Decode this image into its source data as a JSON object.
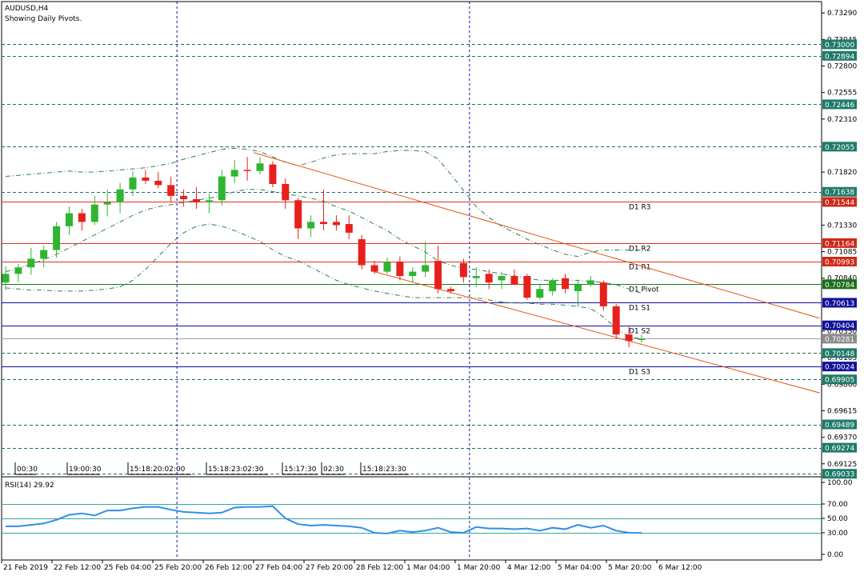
{
  "window": {
    "symbol_title": "AUDUSD,H4",
    "indicator_note": "Showing Daily Pivots."
  },
  "chart_data": {
    "type": "candlestick",
    "ylim": [
      0.69005,
      0.73395
    ],
    "y_ticks": [
      0.7329,
      0.73045,
      0.728,
      0.72555,
      0.7231,
      0.7182,
      0.7133,
      0.71085,
      0.7084,
      0.7035,
      0.70105,
      0.6986,
      0.69615,
      0.6937,
      0.69125
    ],
    "x_labels": [
      "21 Feb 2019",
      "22 Feb 12:00",
      "25 Feb 04:00",
      "25 Feb 20:00",
      "26 Feb 12:00",
      "27 Feb 04:00",
      "27 Feb 20:00",
      "28 Feb 12:00",
      "1 Mar 04:00",
      "1 Mar 20:00",
      "4 Mar 12:00",
      "5 Mar 04:00",
      "5 Mar 20:00",
      "6 Mar 12:00"
    ],
    "session_labels": [
      "00:30",
      "19:00:30",
      "15:18:20:02:00",
      "15:18:23:02:30",
      "15:17:30",
      "02:30",
      "15:18:23:30"
    ],
    "candles": [
      {
        "o": 0.708,
        "h": 0.7095,
        "l": 0.7073,
        "c": 0.7088
      },
      {
        "o": 0.7088,
        "h": 0.7097,
        "l": 0.708,
        "c": 0.7094
      },
      {
        "o": 0.7094,
        "h": 0.7112,
        "l": 0.7087,
        "c": 0.7102
      },
      {
        "o": 0.7102,
        "h": 0.7114,
        "l": 0.7094,
        "c": 0.711
      },
      {
        "o": 0.711,
        "h": 0.7136,
        "l": 0.7103,
        "c": 0.7132
      },
      {
        "o": 0.7132,
        "h": 0.715,
        "l": 0.7124,
        "c": 0.7144
      },
      {
        "o": 0.7144,
        "h": 0.7148,
        "l": 0.7128,
        "c": 0.7136
      },
      {
        "o": 0.7136,
        "h": 0.716,
        "l": 0.7133,
        "c": 0.7152
      },
      {
        "o": 0.7152,
        "h": 0.7166,
        "l": 0.7141,
        "c": 0.7154
      },
      {
        "o": 0.7154,
        "h": 0.7172,
        "l": 0.7144,
        "c": 0.7166
      },
      {
        "o": 0.7166,
        "h": 0.7183,
        "l": 0.716,
        "c": 0.7177
      },
      {
        "o": 0.7177,
        "h": 0.7184,
        "l": 0.7171,
        "c": 0.7174
      },
      {
        "o": 0.7174,
        "h": 0.7182,
        "l": 0.7167,
        "c": 0.717
      },
      {
        "o": 0.717,
        "h": 0.7178,
        "l": 0.7154,
        "c": 0.716
      },
      {
        "o": 0.716,
        "h": 0.7166,
        "l": 0.715,
        "c": 0.7157
      },
      {
        "o": 0.7157,
        "h": 0.7168,
        "l": 0.7148,
        "c": 0.7154
      },
      {
        "o": 0.7154,
        "h": 0.7162,
        "l": 0.7144,
        "c": 0.7156
      },
      {
        "o": 0.7156,
        "h": 0.7184,
        "l": 0.7151,
        "c": 0.7178
      },
      {
        "o": 0.7178,
        "h": 0.7193,
        "l": 0.7172,
        "c": 0.7184
      },
      {
        "o": 0.7184,
        "h": 0.7196,
        "l": 0.7174,
        "c": 0.7183
      },
      {
        "o": 0.7183,
        "h": 0.7196,
        "l": 0.718,
        "c": 0.719
      },
      {
        "o": 0.7189,
        "h": 0.7192,
        "l": 0.7168,
        "c": 0.7171
      },
      {
        "o": 0.7171,
        "h": 0.7176,
        "l": 0.7148,
        "c": 0.7156
      },
      {
        "o": 0.7156,
        "h": 0.7158,
        "l": 0.712,
        "c": 0.713
      },
      {
        "o": 0.713,
        "h": 0.7142,
        "l": 0.7122,
        "c": 0.7136
      },
      {
        "o": 0.7136,
        "h": 0.7166,
        "l": 0.7128,
        "c": 0.7134
      },
      {
        "o": 0.7136,
        "h": 0.7142,
        "l": 0.7128,
        "c": 0.7133
      },
      {
        "o": 0.7134,
        "h": 0.7142,
        "l": 0.712,
        "c": 0.7126
      },
      {
        "o": 0.712,
        "h": 0.7124,
        "l": 0.7092,
        "c": 0.7096
      },
      {
        "o": 0.7096,
        "h": 0.71,
        "l": 0.7088,
        "c": 0.709
      },
      {
        "o": 0.709,
        "h": 0.7103,
        "l": 0.7088,
        "c": 0.7099
      },
      {
        "o": 0.7099,
        "h": 0.7104,
        "l": 0.7082,
        "c": 0.7086
      },
      {
        "o": 0.7086,
        "h": 0.7094,
        "l": 0.708,
        "c": 0.709
      },
      {
        "o": 0.709,
        "h": 0.7118,
        "l": 0.7085,
        "c": 0.7096
      },
      {
        "o": 0.71,
        "h": 0.7114,
        "l": 0.707,
        "c": 0.7074
      },
      {
        "o": 0.7074,
        "h": 0.7076,
        "l": 0.707,
        "c": 0.7072
      },
      {
        "o": 0.7098,
        "h": 0.7102,
        "l": 0.708,
        "c": 0.7085
      },
      {
        "o": 0.7084,
        "h": 0.7094,
        "l": 0.7076,
        "c": 0.7086
      },
      {
        "o": 0.7088,
        "h": 0.7092,
        "l": 0.7074,
        "c": 0.708
      },
      {
        "o": 0.7082,
        "h": 0.709,
        "l": 0.7074,
        "c": 0.7086
      },
      {
        "o": 0.7086,
        "h": 0.7092,
        "l": 0.7078,
        "c": 0.7078
      },
      {
        "o": 0.7086,
        "h": 0.7088,
        "l": 0.7064,
        "c": 0.7066
      },
      {
        "o": 0.7066,
        "h": 0.7078,
        "l": 0.7064,
        "c": 0.7074
      },
      {
        "o": 0.7072,
        "h": 0.7084,
        "l": 0.7068,
        "c": 0.7082
      },
      {
        "o": 0.7084,
        "h": 0.7088,
        "l": 0.707,
        "c": 0.7074
      },
      {
        "o": 0.7072,
        "h": 0.7082,
        "l": 0.7058,
        "c": 0.7078
      },
      {
        "o": 0.7078,
        "h": 0.7086,
        "l": 0.7076,
        "c": 0.7082
      },
      {
        "o": 0.708,
        "h": 0.7082,
        "l": 0.7054,
        "c": 0.7058
      },
      {
        "o": 0.7058,
        "h": 0.706,
        "l": 0.7028,
        "c": 0.7032
      },
      {
        "o": 0.7032,
        "h": 0.704,
        "l": 0.702,
        "c": 0.7026
      },
      {
        "o": 0.7028,
        "h": 0.7032,
        "l": 0.7024,
        "c": 0.7028
      }
    ],
    "bollinger": {
      "upper": [
        0.7178,
        0.7179,
        0.718,
        0.7181,
        0.7182,
        0.7183,
        0.7182,
        0.7182,
        0.7183,
        0.7184,
        0.7185,
        0.7186,
        0.7188,
        0.719,
        0.7194,
        0.7197,
        0.72,
        0.7203,
        0.7204,
        0.7203,
        0.7201,
        0.7196,
        0.7191,
        0.7188,
        0.7191,
        0.7195,
        0.7198,
        0.7199,
        0.7199,
        0.7199,
        0.7201,
        0.7202,
        0.7202,
        0.7201,
        0.7194,
        0.718,
        0.7165,
        0.715,
        0.714,
        0.7132,
        0.7126,
        0.712,
        0.7115,
        0.711,
        0.7106,
        0.7104,
        0.7108,
        0.711,
        0.711,
        0.711,
        0.711
      ],
      "middle": [
        0.709,
        0.7093,
        0.7097,
        0.7101,
        0.7106,
        0.7112,
        0.7118,
        0.7124,
        0.713,
        0.7136,
        0.7142,
        0.7147,
        0.715,
        0.7152,
        0.7154,
        0.7156,
        0.7158,
        0.716,
        0.7164,
        0.7166,
        0.7166,
        0.7164,
        0.7162,
        0.716,
        0.7158,
        0.7155,
        0.715,
        0.7146,
        0.714,
        0.7134,
        0.7128,
        0.712,
        0.7114,
        0.7108,
        0.71,
        0.7096,
        0.7093,
        0.7092,
        0.709,
        0.7088,
        0.7086,
        0.7084,
        0.7082,
        0.7082,
        0.7082,
        0.7082,
        0.7081,
        0.708,
        0.7078,
        0.7074,
        0.707
      ],
      "lower": [
        0.7075,
        0.7074,
        0.7073,
        0.7073,
        0.7072,
        0.7072,
        0.7072,
        0.7073,
        0.7074,
        0.7076,
        0.7082,
        0.7092,
        0.7104,
        0.7116,
        0.7126,
        0.7132,
        0.7134,
        0.7132,
        0.7128,
        0.7123,
        0.7118,
        0.711,
        0.7104,
        0.71,
        0.7094,
        0.7088,
        0.7082,
        0.7078,
        0.7075,
        0.7072,
        0.707,
        0.7068,
        0.7066,
        0.7066,
        0.7066,
        0.7066,
        0.7066,
        0.7066,
        0.7064,
        0.7062,
        0.7061,
        0.7061,
        0.706,
        0.706,
        0.7059,
        0.7058,
        0.7056,
        0.7048,
        0.7038,
        0.703,
        0.7028
      ]
    },
    "channel_lines": [
      {
        "i0": 19.5,
        "p0": 0.72,
        "i1": 64,
        "p1": 0.7047
      },
      {
        "i0": 29,
        "p0": 0.709,
        "i1": 64,
        "p1": 0.6978
      }
    ],
    "pivots": [
      {
        "label": "D1 R3",
        "tag": "0.71544",
        "value": 0.71544,
        "color": "#e03020"
      },
      {
        "label": "D1 R2",
        "tag": "0.71164",
        "value": 0.71164,
        "color": "#e03020"
      },
      {
        "label": "D1 R1",
        "tag": "0.70993",
        "value": 0.70993,
        "color": "#e03020"
      },
      {
        "label": "D1 Pivot",
        "tag": "0.70784",
        "value": 0.70784,
        "color": "#1b7a1b"
      },
      {
        "label": "D1 S1",
        "tag": "0.70613",
        "value": 0.70613,
        "color": "#1010a0"
      },
      {
        "label": "D1 S2",
        "tag": "0.70404",
        "value": 0.70404,
        "color": "#1010a0"
      },
      {
        "label": "D1 S3",
        "tag": "0.70024",
        "value": 0.70024,
        "color": "#1010a0"
      }
    ],
    "horizontal_levels": [
      {
        "tag": "0.73000",
        "value": 0.73
      },
      {
        "tag": "0.72894",
        "value": 0.72894
      },
      {
        "tag": "0.72446",
        "value": 0.72446
      },
      {
        "tag": "0.72055",
        "value": 0.72055
      },
      {
        "tag": "0.71638",
        "value": 0.71638
      },
      {
        "tag": "0.70148",
        "value": 0.70148
      },
      {
        "tag": "0.69905",
        "value": 0.69905
      },
      {
        "tag": "0.69489",
        "value": 0.69489
      },
      {
        "tag": "0.69274",
        "value": 0.69274
      },
      {
        "tag": "0.69033",
        "value": 0.69033
      }
    ],
    "current_price": {
      "tag": "0.70281",
      "value": 0.70281
    },
    "rsi": {
      "label": "RSI(14) 29.92",
      "ylim": [
        0,
        100
      ],
      "ticks": [
        "100.00",
        "70.00",
        "50.00",
        "30.00",
        "0.00"
      ],
      "levels": [
        70,
        50,
        30
      ],
      "values": [
        39,
        39,
        41,
        43,
        48,
        55,
        57,
        54,
        61,
        61,
        64,
        66,
        66,
        62,
        59,
        58,
        57,
        58,
        65,
        66,
        66,
        67,
        50,
        42,
        40,
        41,
        40,
        39,
        37,
        30,
        29,
        33,
        31,
        33,
        37,
        31,
        30,
        38,
        36,
        36,
        35,
        36,
        33,
        37,
        35,
        41,
        37,
        40,
        33,
        30,
        29.92
      ]
    },
    "colors": {
      "bull": "#2fb52f",
      "bear": "#e8201c",
      "bands": "#2e7d5b",
      "channel": "#e05518",
      "level_line": "#1a6e5a",
      "rsi_line": "#2f8fe8",
      "rsi_level": "#3aa3a3",
      "session": "#1010a0"
    }
  }
}
